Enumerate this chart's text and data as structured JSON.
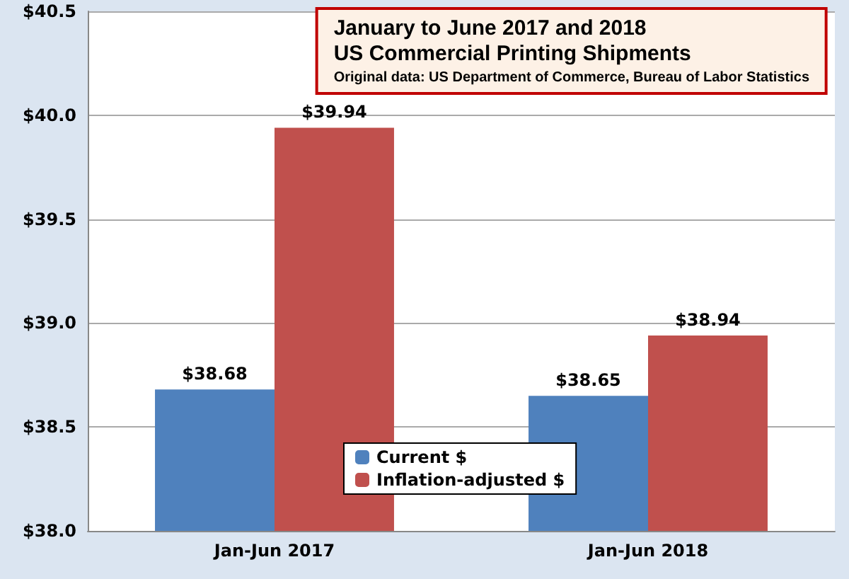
{
  "chart_data": {
    "type": "bar",
    "title": "January to June 2017 and 2018\nUS Commercial Printing Shipments",
    "subtitle": "Original data: US Department of Commerce, Bureau of Labor Statistics",
    "categories": [
      "Jan-Jun 2017",
      "Jan-Jun 2018"
    ],
    "series": [
      {
        "name": "Current $",
        "color": "#4f81bd",
        "values": [
          38.68,
          38.65
        ],
        "value_labels": [
          "$38.68",
          "$38.65"
        ]
      },
      {
        "name": "Inflation-adjusted $",
        "color": "#c0504d",
        "values": [
          39.94,
          38.94
        ],
        "value_labels": [
          "$39.94",
          "$38.94"
        ]
      }
    ],
    "ylim": [
      38.0,
      40.5
    ],
    "yticks": [
      {
        "value": 38.0,
        "label": "$38.0"
      },
      {
        "value": 38.5,
        "label": "$38.5"
      },
      {
        "value": 39.0,
        "label": "$39.0"
      },
      {
        "value": 39.5,
        "label": "$39.5"
      },
      {
        "value": 40.0,
        "label": "$40.0"
      },
      {
        "value": 40.5,
        "label": "$40.5"
      }
    ],
    "grid": "y",
    "legend": "bottom"
  }
}
